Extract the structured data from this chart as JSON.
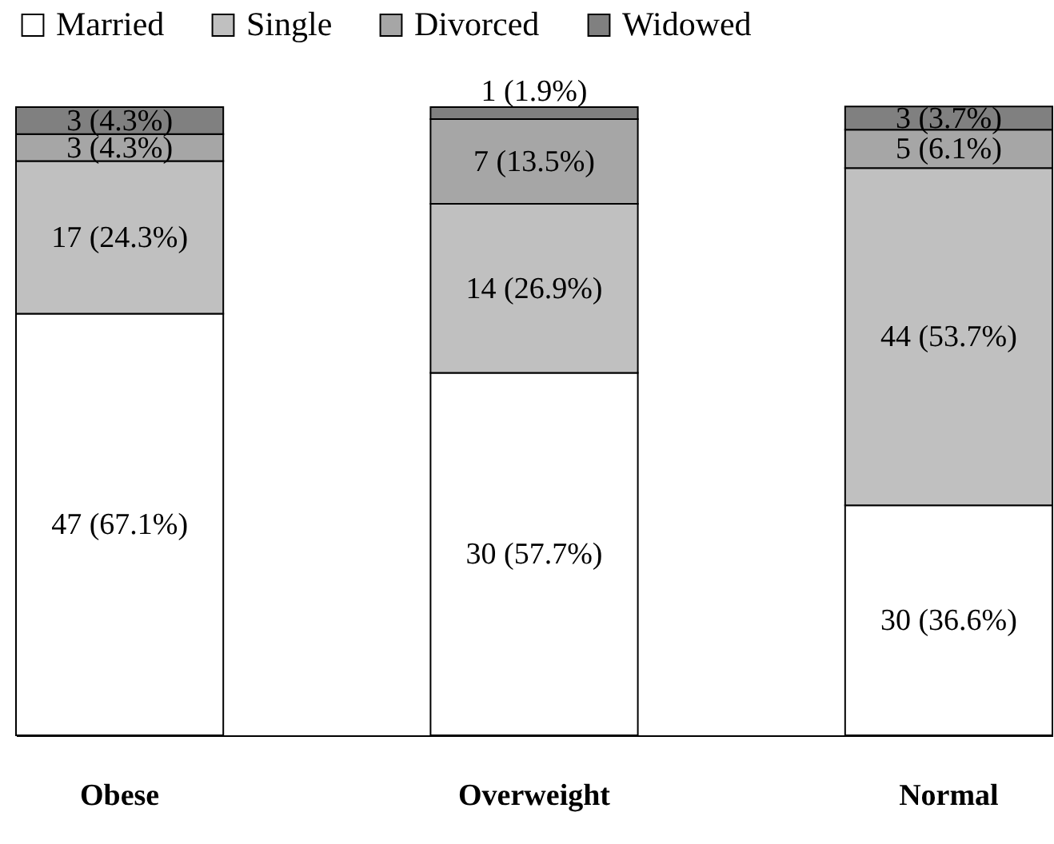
{
  "chart_data": {
    "type": "bar",
    "stacked": true,
    "categories": [
      "Obese",
      "Overweight",
      "Normal"
    ],
    "ylim": [
      0,
      100
    ],
    "tick_labels": "x",
    "legend": "top",
    "series": [
      {
        "name": "Married",
        "color": "#ffffff",
        "values": [
          67.1,
          57.7,
          36.6
        ],
        "value_labels": [
          "47 (67.1%)",
          "30 (57.7%)",
          "30 (36.6%)"
        ]
      },
      {
        "name": "Single",
        "color": "#c0c0c0",
        "values": [
          24.3,
          26.9,
          53.7
        ],
        "value_labels": [
          "17 (24.3%)",
          "14 (26.9%)",
          "44 (53.7%)"
        ]
      },
      {
        "name": "Divorced",
        "color": "#a6a6a6",
        "values": [
          4.3,
          13.5,
          6.1
        ],
        "value_labels": [
          "3 (4.3%)",
          "7 (13.5%)",
          "5 (6.1%)"
        ]
      },
      {
        "name": "Widowed",
        "color": "#808080",
        "values": [
          4.3,
          1.9,
          3.7
        ],
        "value_labels": [
          "3 (4.3%)",
          "1 (1.9%)",
          "3 (3.7%)"
        ]
      }
    ]
  }
}
